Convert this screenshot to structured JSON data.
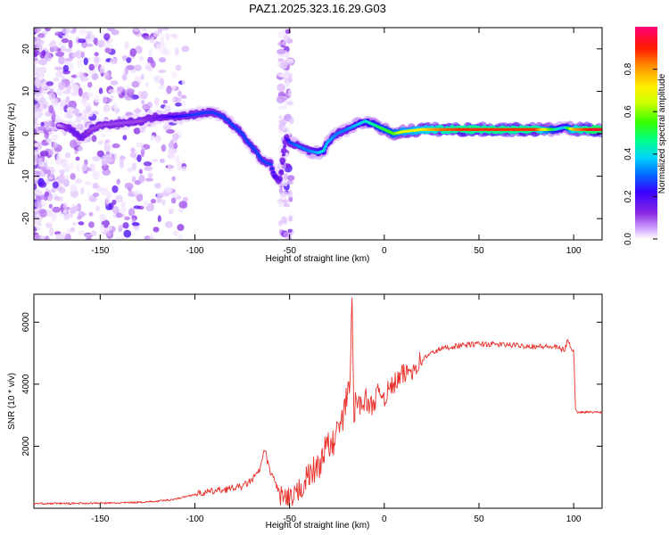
{
  "chart_data": [
    {
      "type": "heatmap",
      "title": "PAZ1.2025.323.16.29.G03",
      "xlabel": "Height of straight line (km)",
      "ylabel": "Frequency (Hz)",
      "xlim": [
        -185,
        115
      ],
      "ylim": [
        -25,
        25
      ],
      "xticks": [
        -150,
        -100,
        -50,
        0,
        50,
        100
      ],
      "yticks": [
        -20,
        -10,
        0,
        10,
        20
      ],
      "xtick_labels": [
        "-150",
        "-100",
        "-50",
        "0",
        "50",
        "100"
      ],
      "ytick_labels": [
        "-20",
        "-10",
        "0",
        "10",
        "20"
      ],
      "ridge": {
        "x": [
          -172,
          -165,
          -160,
          -155,
          -150,
          -128,
          -120,
          -110,
          -100,
          -95,
          -90,
          -85,
          -80,
          -75,
          -72,
          -68,
          -65,
          -62,
          -60,
          -58,
          -55,
          -52,
          -50,
          -45,
          -40,
          -35,
          -32,
          -30,
          -25,
          -20,
          -15,
          -10,
          -5,
          0,
          5,
          10,
          20,
          30,
          40,
          60,
          80,
          90,
          95,
          100,
          110,
          115
        ],
        "y": [
          2,
          1,
          -1,
          1,
          2,
          3,
          4,
          4,
          4.5,
          5,
          5,
          4,
          2,
          0,
          -2,
          -4,
          -6,
          -7,
          -7,
          -10,
          -11,
          -1,
          -2,
          -3,
          -4,
          -4.5,
          -4,
          -2,
          0,
          1,
          2,
          3,
          2,
          1,
          0,
          0.5,
          1,
          1,
          1,
          1,
          1,
          1,
          1.5,
          1,
          1,
          1
        ],
        "amplitude": [
          0.1,
          0.2,
          0.2,
          0.15,
          0.15,
          0.15,
          0.2,
          0.25,
          0.3,
          0.3,
          0.3,
          0.3,
          0.3,
          0.3,
          0.3,
          0.3,
          0.3,
          0.3,
          0.3,
          0.25,
          0.2,
          0.2,
          0.3,
          0.35,
          0.35,
          0.4,
          0.45,
          0.4,
          0.35,
          0.35,
          0.4,
          0.45,
          0.5,
          0.55,
          0.6,
          0.7,
          0.75,
          0.85,
          0.9,
          0.9,
          0.9,
          0.5,
          0.4,
          0.8,
          0.95,
          0.95
        ]
      }
    },
    {
      "type": "line",
      "xlabel": "Height of straight line (km)",
      "ylabel": "SNR (10 * v/v)",
      "xlim": [
        -185,
        115
      ],
      "ylim": [
        0,
        6900
      ],
      "xticks": [
        -150,
        -100,
        -50,
        0,
        50,
        100
      ],
      "yticks": [
        2000,
        4000,
        6000
      ],
      "xtick_labels": [
        "-150",
        "-100",
        "-50",
        "0",
        "50",
        "100"
      ],
      "ytick_labels": [
        "2000",
        "4000",
        "6000"
      ],
      "line_color": "#e8302b",
      "series": [
        {
          "name": "SNR",
          "x": [
            -185,
            -160,
            -140,
            -120,
            -110,
            -100,
            -90,
            -80,
            -75,
            -70,
            -66,
            -63,
            -61,
            -58,
            -55,
            -52,
            -50,
            -47,
            -45,
            -42,
            -40,
            -38,
            -35,
            -33,
            -30,
            -28,
            -25,
            -22,
            -20,
            -18,
            -17,
            -16,
            -15,
            -12,
            -10,
            -8,
            -5,
            -2,
            0,
            5,
            10,
            15,
            20,
            25,
            30,
            40,
            50,
            60,
            70,
            80,
            90,
            95,
            97,
            99,
            100,
            101,
            102,
            115
          ],
          "y": [
            150,
            160,
            170,
            220,
            300,
            450,
            550,
            650,
            700,
            900,
            1200,
            1900,
            1300,
            900,
            450,
            250,
            200,
            300,
            600,
            900,
            1000,
            1200,
            1300,
            1600,
            2100,
            1900,
            2500,
            2800,
            3500,
            4300,
            6600,
            2900,
            3500,
            3300,
            3600,
            3200,
            3500,
            3800,
            3600,
            4000,
            4300,
            4500,
            4800,
            5000,
            5150,
            5250,
            5300,
            5280,
            5250,
            5220,
            5200,
            5100,
            5400,
            5150,
            5100,
            3150,
            3100,
            3100
          ]
        }
      ]
    }
  ],
  "colorbar": {
    "label": "Normalized spectral amplitude",
    "ticks": [
      0.0,
      0.2,
      0.4,
      0.6,
      0.8
    ],
    "tick_labels": [
      "0.0",
      "0.2",
      "0.4",
      "0.6",
      "0.8"
    ],
    "range": [
      0,
      1
    ],
    "colors": [
      "#ffffff",
      "#d9b3ff",
      "#8a2be2",
      "#3a00ff",
      "#0066ff",
      "#00d0ff",
      "#00ff90",
      "#33ff00",
      "#ccff00",
      "#ffee00",
      "#ff8800",
      "#ff1a00",
      "#ff0077"
    ]
  }
}
